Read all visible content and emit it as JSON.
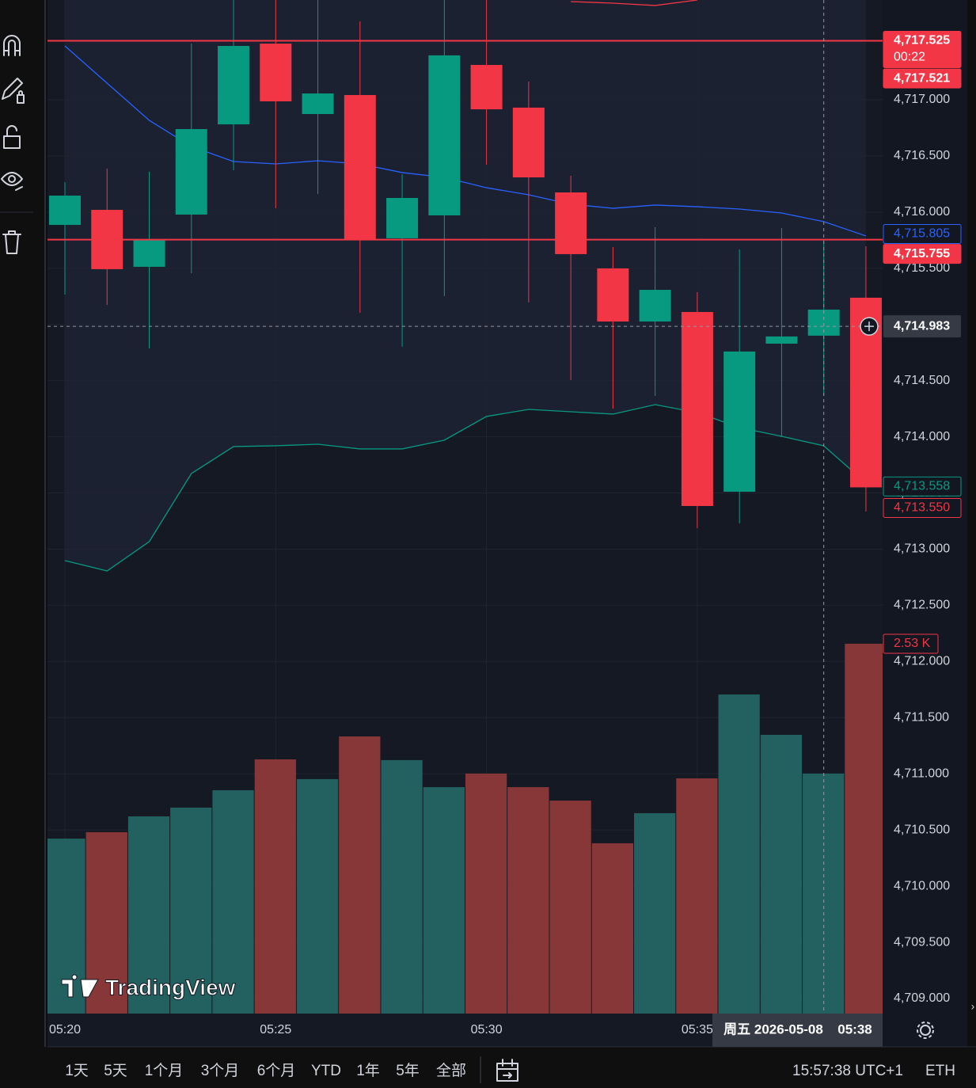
{
  "chart_data": {
    "type": "candlestick",
    "categories": [
      "05:20",
      null,
      null,
      null,
      null,
      "05:25",
      null,
      null,
      null,
      null,
      "05:30",
      null,
      null,
      null,
      null,
      "05:35",
      null,
      null,
      null,
      null
    ],
    "open": [
      4715.886,
      4716.02,
      4715.513,
      4715.978,
      4716.781,
      4717.5,
      4716.873,
      4717.042,
      4715.767,
      4715.971,
      4717.31,
      4716.93,
      4716.175,
      4715.499,
      4715.026,
      4715.111,
      4713.511,
      4714.829,
      4714.9,
      4715.238
    ],
    "high": [
      4716.267,
      4716.387,
      4716.359,
      4717.5,
      4717.95,
      4717.95,
      4717.95,
      4717.698,
      4716.337,
      4717.95,
      4717.95,
      4717.162,
      4716.323,
      4715.689,
      4715.865,
      4715.287,
      4715.668,
      4715.858,
      4715.759,
      4715.696
    ],
    "low": [
      4715.266,
      4715.174,
      4714.787,
      4715.456,
      4716.373,
      4716.034,
      4716.161,
      4715.104,
      4714.801,
      4715.252,
      4716.422,
      4715.196,
      4714.505,
      4714.251,
      4714.364,
      4713.187,
      4713.229,
      4713.997,
      4714.364,
      4713.335
    ],
    "close": [
      4716.147,
      4715.492,
      4715.759,
      4716.739,
      4717.479,
      4716.986,
      4717.056,
      4715.759,
      4716.126,
      4717.395,
      4716.915,
      4716.309,
      4715.626,
      4715.026,
      4715.308,
      4713.384,
      4714.759,
      4714.893,
      4715.132,
      4713.55
    ],
    "up_color": "#089981",
    "down_color": "#f23645",
    "overlays": [
      {
        "color": "#2962ff",
        "values": [
          4717.479,
          4717.148,
          4716.817,
          4716.584,
          4716.45,
          4716.429,
          4716.457,
          4716.429,
          4716.352,
          4716.309,
          4716.217,
          4716.154,
          4716.07,
          4716.034,
          4716.063,
          4716.048,
          4716.027,
          4715.992,
          4715.915,
          4715.788
        ]
      },
      {
        "color": "#089981",
        "fill": true,
        "values": [
          4712.898,
          4712.806,
          4713.067,
          4713.673,
          4713.913,
          4713.92,
          4713.934,
          4713.892,
          4713.892,
          4713.97,
          4714.181,
          4714.244,
          4714.223,
          4714.202,
          4714.286,
          4714.216,
          4714.082,
          4714.004,
          4713.92,
          4713.589
        ]
      },
      {
        "color": "#f23645",
        "values": [
          null,
          null,
          null,
          null,
          null,
          null,
          null,
          null,
          null,
          null,
          null,
          null,
          4717.874,
          4717.86,
          4717.839,
          4717.888,
          null,
          null,
          null,
          null
        ]
      }
    ],
    "volume": {
      "values": [
        1197,
        1241,
        1349,
        1409,
        1528,
        1739,
        1604,
        1896,
        1734,
        1549,
        1642,
        1549,
        1457,
        1165,
        1371,
        1609,
        2183,
        1907,
        1642,
        2530
      ],
      "up_color": "#22615f",
      "down_color": "#883739",
      "vlim": [
        0,
        6934
      ],
      "last": {
        "value": 2530,
        "label": "2.53 K"
      }
    },
    "ylim": [
      4708.866,
      4717.888
    ],
    "yticks": [
      {
        "value": 4717,
        "label": "4,717.000"
      },
      {
        "value": 4716.5,
        "label": "4,716.500"
      },
      {
        "value": 4716,
        "label": "4,716.000"
      },
      {
        "value": 4715.5,
        "label": "4,715.500"
      },
      {
        "value": 4715,
        "label": "4,715.000"
      },
      {
        "value": 4714.5,
        "label": "4,714.500"
      },
      {
        "value": 4714,
        "label": "4,714.000"
      },
      {
        "value": 4713.5,
        "label": "4,713.500"
      },
      {
        "value": 4713,
        "label": "4,713.000"
      },
      {
        "value": 4712.5,
        "label": "4,712.500"
      },
      {
        "value": 4712,
        "label": "4,712.000"
      },
      {
        "value": 4711.5,
        "label": "4,711.500"
      },
      {
        "value": 4711,
        "label": "4,711.000"
      },
      {
        "value": 4710.5,
        "label": "4,710.500"
      },
      {
        "value": 4710,
        "label": "4,710.000"
      },
      {
        "value": 4709.5,
        "label": "4,709.500"
      },
      {
        "value": 4709,
        "label": "4,709.000"
      }
    ],
    "price_labels": [
      {
        "value": 4717.525,
        "label": "4,717.525",
        "sub": "00:22",
        "style": "fill",
        "color": "#f23645",
        "line": true
      },
      {
        "value": 4717.521,
        "label": "4,717.521",
        "style": "fill",
        "color": "#f23645"
      },
      {
        "value": 4715.805,
        "label": "4,715.805",
        "style": "outline",
        "color": "#2962ff"
      },
      {
        "value": 4715.755,
        "label": "4,715.755",
        "style": "fill",
        "color": "#f23645",
        "line": true
      },
      {
        "value": 4713.558,
        "label": "4,713.558",
        "style": "outline",
        "color": "#089981"
      },
      {
        "value": 4713.55,
        "label": "4,713.550",
        "style": "outline",
        "color": "#f23645"
      }
    ],
    "crosshair": {
      "price": {
        "value": 4714.983,
        "label": "4,714.983"
      },
      "date": "周五 2026-05-08",
      "time": "05:38"
    },
    "grid": true
  },
  "logo": "TradingView",
  "ranges": [
    "1天",
    "5天",
    "1个月",
    "3个月",
    "6个月",
    "YTD",
    "1年",
    "5年",
    "全部"
  ],
  "clock": "15:57:38 UTC+1",
  "session": "ETH"
}
